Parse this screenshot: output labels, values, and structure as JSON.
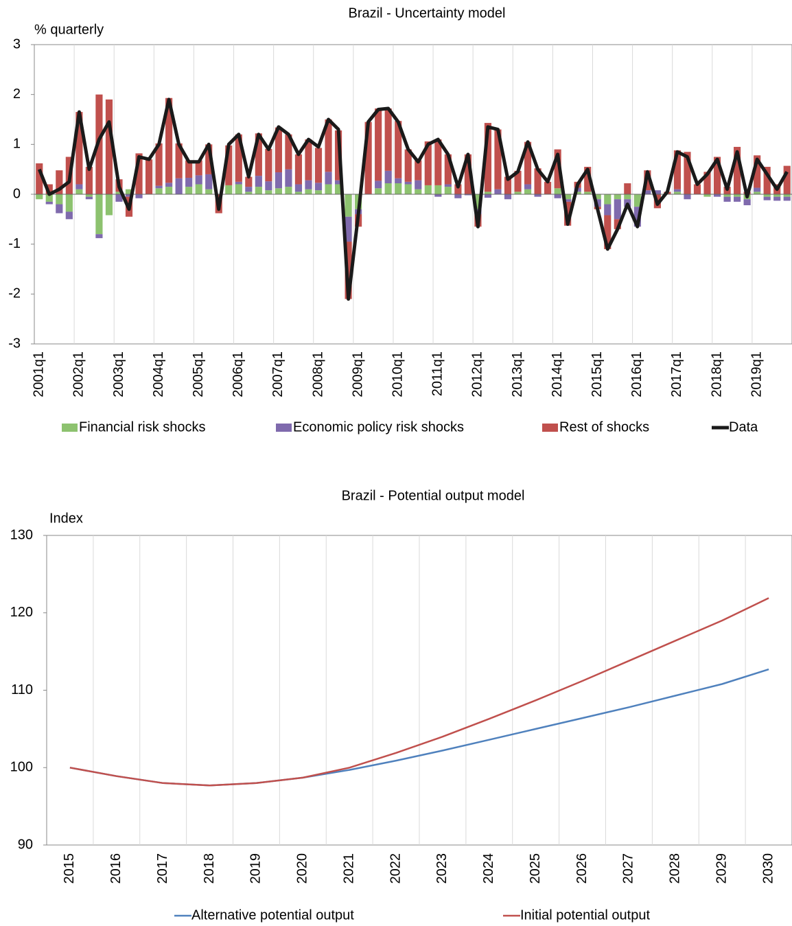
{
  "chart_data": [
    {
      "type": "combo",
      "title": "Brazil - Uncertainty model",
      "ylabel": "% quarterly",
      "categories": [
        "2001q1",
        null,
        null,
        null,
        "2002q1",
        null,
        null,
        null,
        "2003q1",
        null,
        null,
        null,
        "2004q1",
        null,
        null,
        null,
        "2005q1",
        null,
        null,
        null,
        "2006q1",
        null,
        null,
        null,
        "2007q1",
        null,
        null,
        null,
        "2008q1",
        null,
        null,
        null,
        "2009q1",
        null,
        null,
        null,
        "2010q1",
        null,
        null,
        null,
        "2011q1",
        null,
        null,
        null,
        "2012q1",
        null,
        null,
        null,
        "2013q1",
        null,
        null,
        null,
        "2014q1",
        null,
        null,
        null,
        "2015q1",
        null,
        null,
        null,
        "2016q1",
        null,
        null,
        null,
        "2017q1",
        null,
        null,
        null,
        "2018q1",
        null,
        null,
        null,
        "2019q1",
        null,
        null,
        null
      ],
      "series": [
        {
          "name": "Financial risk shocks",
          "type": "bar",
          "color": "#8dc26f",
          "values": [
            -0.1,
            -0.15,
            -0.2,
            -0.35,
            0.1,
            -0.05,
            -0.8,
            -0.42,
            0.05,
            0.1,
            0,
            0,
            0.12,
            0.15,
            0,
            0.15,
            0.2,
            0.1,
            0,
            0.18,
            0.2,
            0.05,
            0.15,
            0.08,
            0.12,
            0.15,
            0.05,
            0.1,
            0.08,
            0.2,
            0.2,
            -0.45,
            -0.3,
            0,
            0.12,
            0.22,
            0.22,
            0.2,
            0.1,
            0.18,
            0.18,
            0.15,
            0,
            0,
            -0.3,
            0.05,
            0,
            0,
            0.05,
            0.1,
            0,
            0,
            0.12,
            -0.1,
            0.05,
            0.05,
            -0.1,
            -0.2,
            -0.1,
            -0.1,
            -0.25,
            0,
            0,
            0,
            0.05,
            0,
            0,
            -0.05,
            0,
            -0.05,
            -0.05,
            -0.1,
            0.05,
            -0.05,
            -0.05,
            -0.05
          ]
        },
        {
          "name": "Economic policy risk shocks",
          "type": "bar",
          "color": "#7f6aad",
          "values": [
            0,
            -0.05,
            -0.18,
            -0.15,
            0.1,
            -0.05,
            -0.08,
            0,
            -0.15,
            -0.05,
            -0.08,
            0,
            0.05,
            0.08,
            0.32,
            0.18,
            0.18,
            0.3,
            0,
            0,
            0.05,
            0.1,
            0.22,
            0.18,
            0.32,
            0.35,
            0.15,
            0.18,
            0.15,
            0.25,
            0.08,
            -0.5,
            -0.1,
            0,
            0.15,
            0.25,
            0.1,
            0.05,
            0.18,
            0,
            -0.05,
            0.05,
            -0.08,
            -0.02,
            -0.1,
            -0.07,
            0.1,
            -0.1,
            0,
            0.1,
            -0.05,
            0,
            -0.08,
            -0.05,
            0.08,
            0,
            -0.15,
            -0.22,
            -0.4,
            -0.15,
            -0.4,
            0.08,
            0.08,
            0,
            0.05,
            -0.1,
            0,
            0,
            -0.05,
            -0.1,
            -0.1,
            -0.12,
            0.08,
            -0.07,
            -0.08,
            -0.08
          ]
        },
        {
          "name": "Rest of shocks",
          "type": "bar",
          "color": "#c0504d",
          "values": [
            0.62,
            0.2,
            0.48,
            0.75,
            1.45,
            0.55,
            2.0,
            1.9,
            0.25,
            -0.4,
            0.82,
            0.7,
            0.85,
            1.7,
            0.7,
            0.35,
            0.3,
            0.6,
            -0.38,
            0.8,
            0.95,
            0.2,
            0.85,
            0.65,
            0.9,
            0.7,
            0.6,
            0.82,
            0.7,
            1.05,
            1.0,
            -1.15,
            -0.25,
            1.45,
            1.45,
            1.25,
            1.15,
            0.65,
            0.4,
            0.88,
            0.92,
            0.6,
            0.2,
            0.8,
            -0.25,
            1.38,
            1.2,
            0.35,
            0.42,
            0.85,
            0.52,
            0.25,
            0.78,
            -0.48,
            0.12,
            0.5,
            -0.05,
            -0.68,
            -0.2,
            0.22,
            0,
            0.4,
            -0.28,
            0.05,
            0.78,
            0.85,
            0.2,
            0.45,
            0.75,
            0.15,
            0.95,
            0.05,
            0.65,
            0.55,
            0.2,
            0.57
          ]
        },
        {
          "name": "Data",
          "type": "line",
          "color": "#1a1a1a",
          "values": [
            0.5,
            0,
            0.1,
            0.25,
            1.65,
            0.5,
            1.1,
            1.45,
            0.15,
            -0.3,
            0.75,
            0.7,
            1,
            1.9,
            1,
            0.65,
            0.65,
            1,
            -0.3,
            1,
            1.2,
            0.35,
            1.2,
            0.9,
            1.35,
            1.2,
            0.8,
            1.1,
            0.95,
            1.5,
            1.3,
            -2.1,
            -0.4,
            1.45,
            1.7,
            1.72,
            1.45,
            0.9,
            0.65,
            1,
            1.1,
            0.8,
            0.15,
            0.8,
            -0.65,
            1.35,
            1.3,
            0.3,
            0.45,
            1.05,
            0.5,
            0.25,
            0.8,
            -0.6,
            0.2,
            0.5,
            -0.3,
            -1.1,
            -0.7,
            -0.2,
            -0.65,
            0.45,
            -0.2,
            0.05,
            0.85,
            0.75,
            0.2,
            0.4,
            0.7,
            0.1,
            0.85,
            -0.05,
            0.7,
            0.4,
            0.1,
            0.45
          ]
        }
      ],
      "ylim": [
        -3,
        3
      ],
      "yticks": [
        -3,
        -2,
        -1,
        0,
        1,
        2,
        3
      ],
      "stacked": true,
      "xgrid": true,
      "legend": "bottom"
    },
    {
      "type": "line",
      "title": "Brazil - Potential output model",
      "ylabel": "Index",
      "categories": [
        "2015",
        "2016",
        "2017",
        "2018",
        "2019",
        "2020",
        "2021",
        "2022",
        "2023",
        "2024",
        "2025",
        "2026",
        "2027",
        "2028",
        "2029",
        "2030"
      ],
      "series": [
        {
          "name": "Alternative potential output",
          "color": "#4f81bd",
          "values": [
            100,
            98.9,
            98,
            97.7,
            98,
            98.7,
            99.7,
            100.9,
            102.2,
            103.6,
            105,
            106.4,
            107.8,
            109.3,
            110.8,
            112.7
          ]
        },
        {
          "name": "Initial potential output",
          "color": "#c0504d",
          "values": [
            100,
            98.9,
            98,
            97.7,
            98,
            98.7,
            100,
            101.9,
            104,
            106.3,
            108.7,
            111.2,
            113.8,
            116.4,
            119,
            121.9
          ]
        }
      ],
      "ylim": [
        90,
        130
      ],
      "yticks": [
        90,
        100,
        110,
        120,
        130
      ],
      "xgrid": true,
      "legend": "bottom"
    }
  ]
}
